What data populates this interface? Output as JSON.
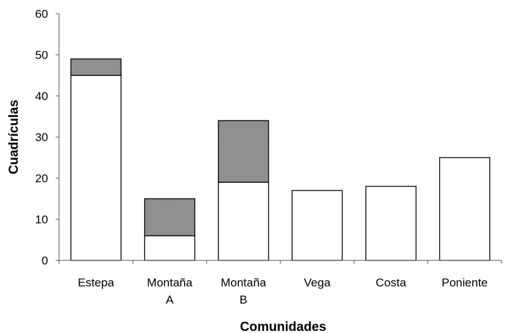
{
  "chart_data": {
    "type": "bar",
    "stacked": true,
    "xlabel": "Comunidades",
    "ylabel": "Cuadrículas",
    "ylim": [
      0,
      60
    ],
    "yticks": [
      "0",
      "10",
      "20",
      "30",
      "40",
      "50",
      "60"
    ],
    "categories": [
      [
        "Estepa"
      ],
      [
        "Montaña",
        "A"
      ],
      [
        "Montaña",
        "B"
      ],
      [
        "Vega"
      ],
      [
        "Costa"
      ],
      [
        "Poniente"
      ]
    ],
    "series": [
      {
        "values": [
          45,
          6,
          19,
          17,
          18,
          25
        ],
        "color": "#ffffff"
      },
      {
        "values": [
          4,
          9,
          15,
          0,
          0,
          0
        ],
        "color": "#8c8c8c"
      }
    ],
    "grid": false,
    "legend": "none"
  }
}
